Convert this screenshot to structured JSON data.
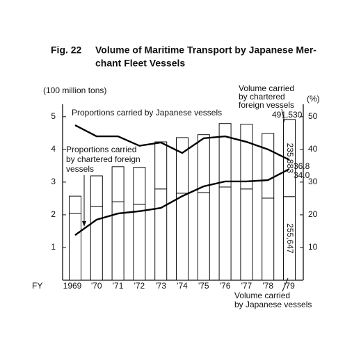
{
  "chart_data": {
    "type": "bar",
    "figure_number": "Fig.  22",
    "title": [
      "Volume of Maritime Transport by Japanese Mer-",
      "chant Fleet Vessels"
    ],
    "ylabel": "(100 million tons)",
    "y2label": "(%)",
    "x_label": "FY",
    "categories": [
      "1969",
      "'70",
      "'71",
      "'72",
      "'73",
      "'74",
      "'75",
      "'76",
      "'77",
      "'78",
      "'79"
    ],
    "ylim": [
      0,
      5.4
    ],
    "yticks": [
      1,
      2,
      3,
      4,
      5
    ],
    "y2lim": [
      0,
      54
    ],
    "y2ticks": [
      10,
      20,
      30,
      40,
      50
    ],
    "series": [
      {
        "name": [
          "Volume carried",
          "by Japanese vessels"
        ],
        "type": "bar",
        "color": "#ffffff",
        "values": [
          2.04,
          2.26,
          2.4,
          2.32,
          2.79,
          2.66,
          2.68,
          2.85,
          2.79,
          2.51,
          2.55647
        ],
        "value_labels": [
          null,
          null,
          null,
          null,
          null,
          null,
          null,
          null,
          null,
          null,
          "255,647"
        ]
      },
      {
        "name": [
          "Volume carried",
          "by chartered",
          "foreign vessels"
        ],
        "type": "bar",
        "color": "#ffffff",
        "values": [
          0.53,
          0.93,
          1.07,
          1.13,
          1.44,
          1.7,
          1.77,
          1.94,
          1.98,
          1.98,
          2.35883
        ],
        "value_labels": [
          null,
          null,
          null,
          null,
          null,
          null,
          null,
          null,
          null,
          null,
          "235,883"
        ]
      },
      {
        "name": [
          "Proportions carried by Japanese vessels"
        ],
        "type": "line",
        "axis": "y2",
        "color": "#000000",
        "values": [
          47.4,
          44.0,
          44.0,
          41.1,
          42.1,
          38.9,
          43.4,
          44.0,
          42.3,
          40.0,
          36.8
        ],
        "value_labels": [
          null,
          null,
          null,
          null,
          null,
          null,
          null,
          null,
          null,
          null,
          "36.8"
        ]
      },
      {
        "name": [
          "Proportions carried",
          "by chartered foreign",
          "vessels"
        ],
        "type": "line",
        "axis": "y2",
        "color": "#000000",
        "values": [
          13.8,
          18.5,
          20.4,
          21.1,
          22.1,
          25.7,
          28.7,
          30.2,
          30.2,
          30.6,
          34.0
        ],
        "value_labels": [
          null,
          null,
          null,
          null,
          null,
          null,
          null,
          null,
          null,
          null,
          "34.0"
        ]
      }
    ],
    "total_label": {
      "value": 4.9153,
      "label": "491,530"
    }
  }
}
